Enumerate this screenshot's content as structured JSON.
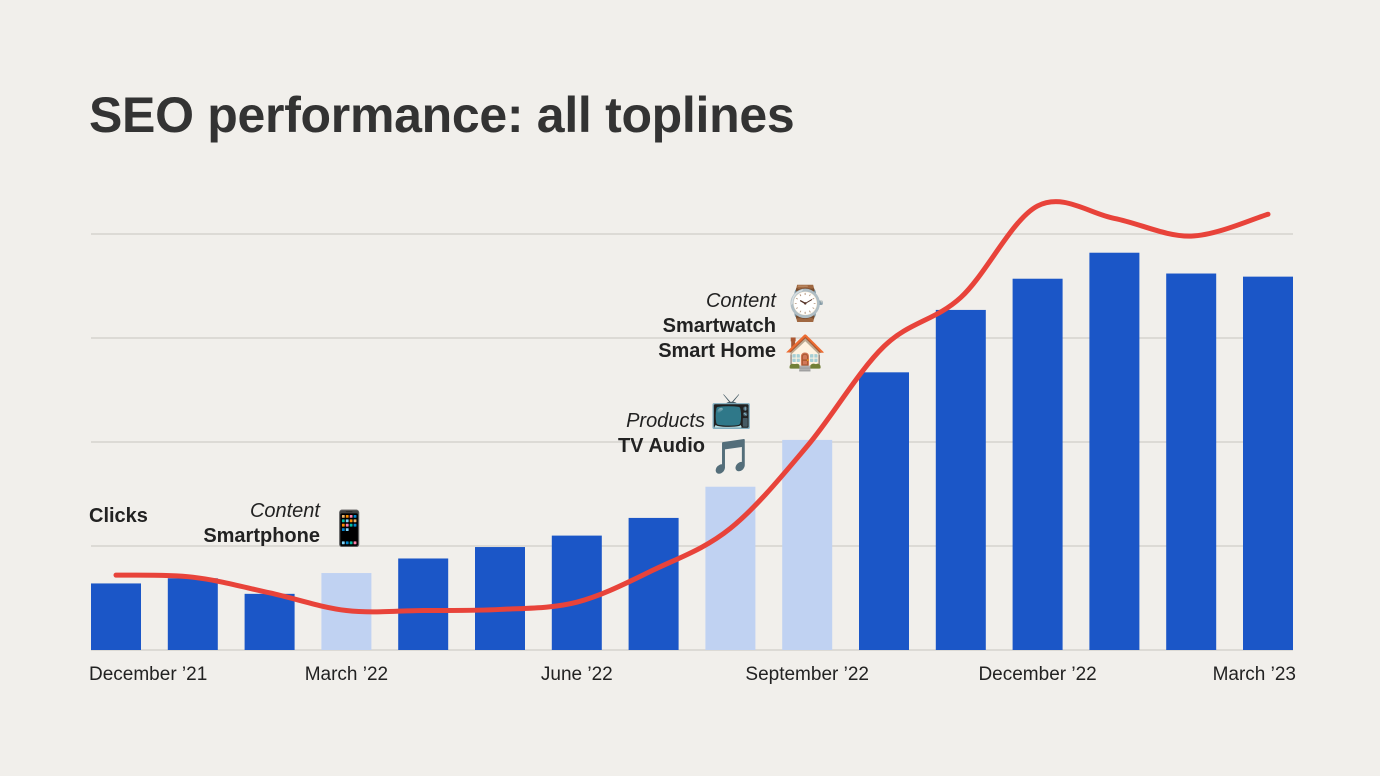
{
  "title": "SEO performance: all toplines",
  "chart_data": {
    "type": "bar",
    "categories": [
      "December '21",
      "January '22",
      "February '22",
      "March '22",
      "April '22",
      "May '22",
      "June '22",
      "July '22",
      "August '22",
      "September '22",
      "October '22",
      "November '22",
      "December '22",
      "January '23",
      "February '23",
      "March '23"
    ],
    "x_tick_labels": [
      "December ’21",
      "March ’22",
      "June ’22",
      "September ’22",
      "December ’22",
      "March ’23"
    ],
    "series": [
      {
        "type": "bar",
        "values": [
          0.64,
          0.69,
          0.54,
          0.74,
          0.88,
          0.99,
          1.1,
          1.27,
          1.57,
          2.02,
          2.67,
          3.27,
          3.57,
          3.82,
          3.62,
          3.59
        ],
        "highlight": [
          false,
          false,
          false,
          true,
          false,
          false,
          false,
          false,
          true,
          true,
          false,
          false,
          false,
          false,
          false,
          false
        ],
        "color": "#1b56c7",
        "highlight_color": "#c0d2f2"
      },
      {
        "type": "line",
        "name": "Clicks",
        "values": [
          0.72,
          0.7,
          0.55,
          0.38,
          0.38,
          0.39,
          0.46,
          0.77,
          1.17,
          1.96,
          2.92,
          3.39,
          4.27,
          4.15,
          3.98,
          4.19
        ],
        "color": "#e8433a"
      }
    ],
    "ylim": [
      0,
      4.5
    ],
    "yticks": [
      1,
      2,
      3,
      4
    ],
    "grid": true,
    "annotations": [
      {
        "category_index": 3,
        "lines": [
          {
            "text": "Content",
            "style": "italic"
          },
          {
            "text": "Smartphone",
            "style": "bold"
          }
        ],
        "icons": [
          "📱"
        ]
      },
      {
        "category_index": 8,
        "lines": [
          {
            "text": "Products",
            "style": "italic"
          },
          {
            "text": "TV Audio",
            "style": "bold"
          }
        ],
        "icons": [
          "📺",
          "🎵"
        ]
      },
      {
        "category_index": 9,
        "lines": [
          {
            "text": "Content",
            "style": "italic"
          },
          {
            "text": "Smartwatch",
            "style": "bold"
          },
          {
            "text": "Smart Home",
            "style": "bold"
          }
        ],
        "icons": [
          "⌚",
          "🏠"
        ]
      }
    ],
    "colors": {
      "bar": "#1b56c7",
      "bar_highlight": "#c0d2f2",
      "line": "#e8433a",
      "grid": "#d6d3ce",
      "background": "#f1efeb"
    }
  }
}
